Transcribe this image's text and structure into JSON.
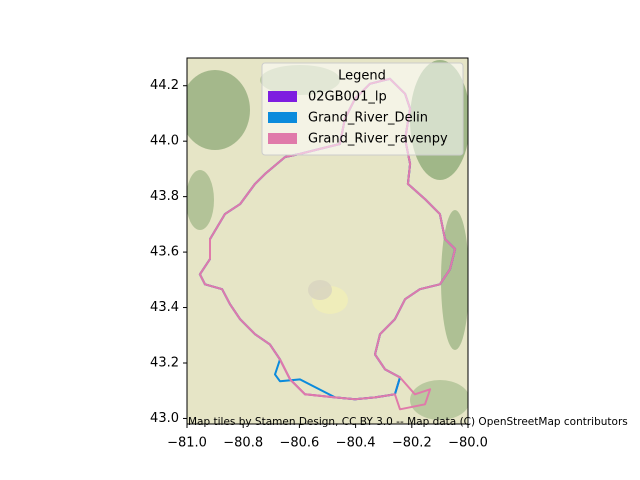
{
  "chart_data": {
    "type": "map",
    "legend_title": "Legend",
    "attribution": "Map tiles by Stamen Design, CC BY 3.0 -- Map data (C) OpenStreetMap contributors",
    "xlim": [
      -81.0,
      -80.0
    ],
    "ylim": [
      42.98,
      44.3
    ],
    "xticks": [
      {
        "value": -81.0,
        "label": "−81.0"
      },
      {
        "value": -80.8,
        "label": "−80.8"
      },
      {
        "value": -80.6,
        "label": "−80.6"
      },
      {
        "value": -80.4,
        "label": "−80.4"
      },
      {
        "value": -80.2,
        "label": "−80.2"
      },
      {
        "value": -80.0,
        "label": "−80.0"
      }
    ],
    "yticks": [
      {
        "value": 43.0,
        "label": "43.0"
      },
      43.2,
      43.4,
      43.6,
      43.8,
      {
        "value": 44.0,
        "label": "44.0"
      },
      44.2
    ],
    "legend_position": "upper right",
    "series": [
      {
        "name": "02GB001_lp",
        "color": "#7e1de0",
        "x": [
          -80.651,
          -80.598,
          -80.527,
          -80.456,
          -80.438,
          -80.402,
          -80.349,
          -80.278,
          -80.224,
          -80.206,
          -80.224,
          -80.206,
          -80.214,
          -80.153,
          -80.1,
          -80.082,
          -80.046,
          -80.064,
          -80.1,
          -80.171,
          -80.224,
          -80.26,
          -80.313,
          -80.331,
          -80.295,
          -80.242,
          -80.26,
          -80.331,
          -80.402,
          -80.473,
          -80.58,
          -80.633,
          -80.669,
          -80.705,
          -80.758,
          -80.811,
          -80.847,
          -80.875,
          -80.936,
          -80.954,
          -80.918,
          -80.918,
          -80.865,
          -80.811,
          -80.758,
          -80.722,
          -80.651
        ],
        "y": [
          43.943,
          43.954,
          43.972,
          43.99,
          44.081,
          44.153,
          44.207,
          44.225,
          44.171,
          44.117,
          44.008,
          43.918,
          43.846,
          43.791,
          43.737,
          43.647,
          43.611,
          43.538,
          43.484,
          43.466,
          43.43,
          43.358,
          43.304,
          43.231,
          43.177,
          43.148,
          43.087,
          43.076,
          43.069,
          43.076,
          43.087,
          43.141,
          43.213,
          43.267,
          43.304,
          43.358,
          43.412,
          43.466,
          43.484,
          43.52,
          43.575,
          43.647,
          43.737,
          43.773,
          43.846,
          43.882,
          43.943
        ]
      },
      {
        "name": "Grand_River_Delin",
        "color": "#0b8bdc",
        "x": [
          -80.651,
          -80.598,
          -80.527,
          -80.456,
          -80.438,
          -80.402,
          -80.349,
          -80.278,
          -80.224,
          -80.206,
          -80.224,
          -80.206,
          -80.214,
          -80.153,
          -80.1,
          -80.082,
          -80.046,
          -80.064,
          -80.1,
          -80.171,
          -80.224,
          -80.26,
          -80.313,
          -80.331,
          -80.295,
          -80.242,
          -80.26,
          -80.331,
          -80.402,
          -80.473,
          -80.598,
          -80.669,
          -80.687,
          -80.669,
          -80.705,
          -80.758,
          -80.811,
          -80.847,
          -80.875,
          -80.936,
          -80.954,
          -80.918,
          -80.918,
          -80.865,
          -80.811,
          -80.758,
          -80.722,
          -80.651
        ],
        "y": [
          43.943,
          43.954,
          43.972,
          43.99,
          44.081,
          44.153,
          44.207,
          44.225,
          44.171,
          44.117,
          44.008,
          43.918,
          43.846,
          43.791,
          43.737,
          43.647,
          43.611,
          43.538,
          43.484,
          43.466,
          43.43,
          43.358,
          43.304,
          43.231,
          43.177,
          43.148,
          43.087,
          43.076,
          43.069,
          43.076,
          43.141,
          43.134,
          43.159,
          43.213,
          43.267,
          43.304,
          43.358,
          43.412,
          43.466,
          43.484,
          43.52,
          43.575,
          43.647,
          43.737,
          43.773,
          43.846,
          43.882,
          43.943
        ]
      },
      {
        "name": "Grand_River_ravenpy",
        "color": "#e07aaa",
        "x": [
          -80.651,
          -80.598,
          -80.527,
          -80.456,
          -80.438,
          -80.402,
          -80.349,
          -80.278,
          -80.224,
          -80.206,
          -80.224,
          -80.206,
          -80.214,
          -80.153,
          -80.1,
          -80.082,
          -80.046,
          -80.064,
          -80.1,
          -80.171,
          -80.224,
          -80.26,
          -80.313,
          -80.331,
          -80.295,
          -80.242,
          -80.189,
          -80.135,
          -80.153,
          -80.242,
          -80.26,
          -80.331,
          -80.402,
          -80.473,
          -80.58,
          -80.633,
          -80.669,
          -80.705,
          -80.758,
          -80.811,
          -80.847,
          -80.875,
          -80.936,
          -80.954,
          -80.918,
          -80.918,
          -80.865,
          -80.811,
          -80.758,
          -80.722,
          -80.651
        ],
        "y": [
          43.943,
          43.954,
          43.972,
          43.99,
          44.081,
          44.153,
          44.207,
          44.225,
          44.171,
          44.117,
          44.008,
          43.918,
          43.846,
          43.791,
          43.737,
          43.647,
          43.611,
          43.538,
          43.484,
          43.466,
          43.43,
          43.358,
          43.304,
          43.231,
          43.177,
          43.148,
          43.087,
          43.105,
          43.051,
          43.033,
          43.087,
          43.076,
          43.069,
          43.076,
          43.087,
          43.141,
          43.213,
          43.267,
          43.304,
          43.358,
          43.412,
          43.466,
          43.484,
          43.52,
          43.575,
          43.647,
          43.737,
          43.773,
          43.846,
          43.882,
          43.943
        ]
      }
    ]
  }
}
